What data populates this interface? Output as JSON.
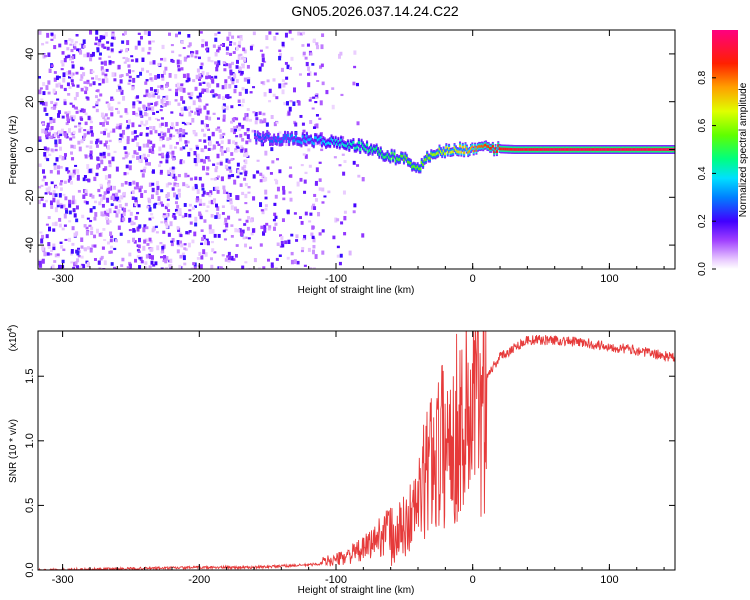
{
  "figure": {
    "title": "GN05.2026.037.14.24.C22"
  },
  "chart_data": [
    {
      "type": "heatmap",
      "name": "spectrogram",
      "xlabel": "Height of straight line (km)",
      "ylabel": "Frequency (Hz)",
      "xlim": [
        -318,
        148
      ],
      "ylim": [
        -50,
        50
      ],
      "xticks": [
        -300,
        -200,
        -100,
        0,
        100
      ],
      "yticks": [
        -40,
        -20,
        0,
        20,
        40
      ],
      "xtick_labels": [
        "-300",
        "-200",
        "-100",
        "0",
        "100"
      ],
      "ytick_labels": [
        "-40",
        "-20",
        "0",
        "20",
        "40"
      ],
      "colorbar": {
        "label": "Normalized spectral amplitude",
        "range": [
          0,
          1
        ],
        "ticks": [
          0.0,
          0.2,
          0.4,
          0.6,
          0.8
        ],
        "tick_labels": [
          "0.0",
          "0.2",
          "0.4",
          "0.6",
          "0.8"
        ]
      },
      "noise_region_x": [
        -318,
        -110
      ],
      "noise_amplitude": 0.12,
      "signal_ridge": {
        "x": [
          -160,
          -140,
          -120,
          -100,
          -80,
          -60,
          -50,
          -40,
          -30,
          -10,
          10,
          30,
          60,
          100,
          148
        ],
        "frequency": [
          5,
          4.5,
          4,
          3,
          1,
          -3,
          -4,
          -8,
          -1,
          0,
          0.5,
          0,
          0,
          0,
          0
        ],
        "amplitude": [
          0.25,
          0.3,
          0.35,
          0.4,
          0.45,
          0.5,
          0.55,
          0.55,
          0.6,
          0.7,
          0.85,
          0.92,
          0.95,
          0.95,
          0.95
        ]
      }
    },
    {
      "type": "line",
      "name": "snr",
      "xlabel": "Height of straight line (km)",
      "ylabel": "SNR (10 * v/v)",
      "y_multiplier_label": "(x10",
      "y_multiplier_exp": "4",
      "xlim": [
        -318,
        148
      ],
      "ylim": [
        0,
        1.85
      ],
      "xticks": [
        -300,
        -200,
        -100,
        0,
        100
      ],
      "yticks": [
        0.0,
        0.5,
        1.0,
        1.5
      ],
      "xtick_labels": [
        "-300",
        "-200",
        "-100",
        "0",
        "100"
      ],
      "ytick_labels": [
        "0.0",
        "0.5",
        "1.0",
        "1.5"
      ],
      "color": "#e63a3a",
      "series": [
        {
          "name": "SNR",
          "x": [
            -318,
            -250,
            -200,
            -160,
            -140,
            -120,
            -100,
            -80,
            -60,
            -50,
            -40,
            -30,
            -20,
            -10,
            0,
            10,
            20,
            30,
            40,
            60,
            80,
            100,
            120,
            148
          ],
          "y": [
            0.0,
            0.01,
            0.02,
            0.02,
            0.03,
            0.04,
            0.06,
            0.12,
            0.25,
            0.35,
            0.55,
            0.95,
            1.05,
            1.2,
            1.35,
            1.5,
            1.65,
            1.72,
            1.78,
            1.78,
            1.76,
            1.73,
            1.7,
            1.64
          ]
        }
      ]
    }
  ]
}
